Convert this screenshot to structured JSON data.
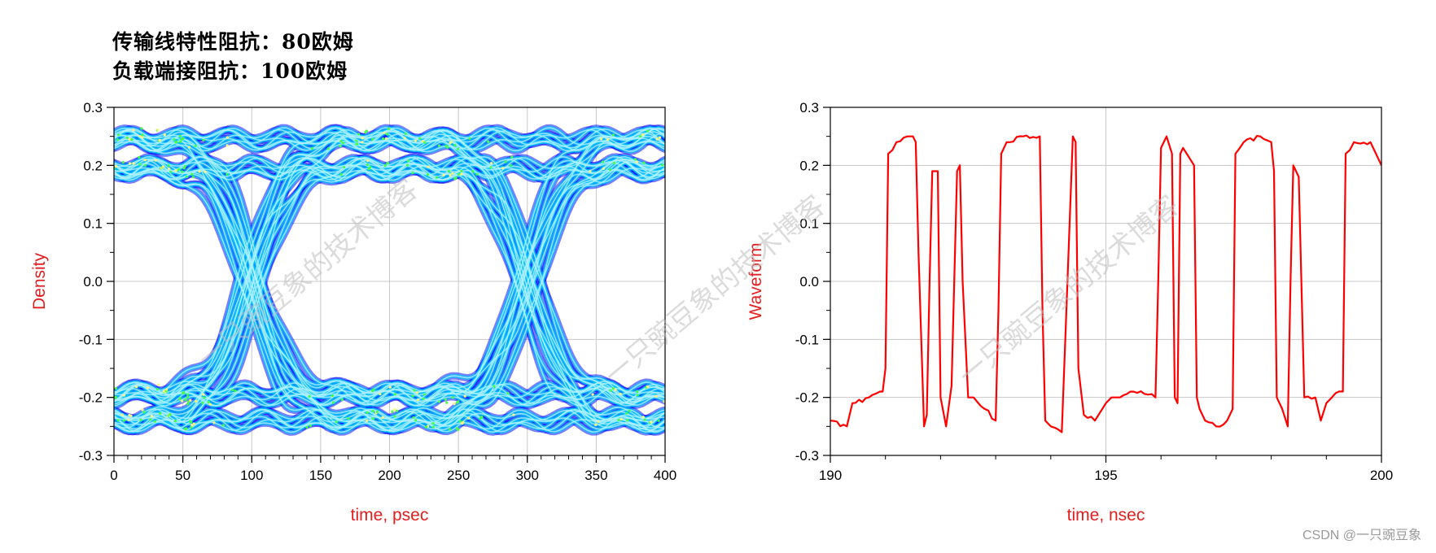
{
  "header": {
    "line1": "传输线特性阻抗：80欧姆",
    "line2": "负载端接阻抗：100欧姆"
  },
  "watermarks": [
    "一只豌豆象的技术博客",
    "一只豌豆象的技术博客",
    "一只豌豆象的技术博客"
  ],
  "credit": "CSDN @一只豌豆象",
  "colors": {
    "axis_label": "#e31e1e",
    "waveform": "#ff0000",
    "eye_low": "#1010ff",
    "eye_mid": "#00c8ff",
    "eye_high": "#44ff44"
  },
  "chart_data": [
    {
      "type": "heatmap",
      "title": "",
      "xlabel": "time, psec",
      "ylabel": "Density",
      "xlim": [
        0,
        400
      ],
      "ylim": [
        -0.3,
        0.3
      ],
      "x_ticks": [
        0,
        50,
        100,
        150,
        200,
        250,
        300,
        350,
        400
      ],
      "y_ticks": [
        -0.3,
        -0.2,
        -0.1,
        0.0,
        0.1,
        0.2,
        0.3
      ],
      "x_tick_labels": [
        "0",
        "50",
        "100",
        "150",
        "200",
        "250",
        "300",
        "350",
        "400"
      ],
      "y_tick_labels": [
        "-0.3",
        "-0.2",
        "-0.1",
        "0.0",
        "0.1",
        "0.2",
        "0.3"
      ],
      "grid": true,
      "eye_crossings_psec": [
        100,
        300
      ],
      "upper_levels": [
        0.245,
        0.195
      ],
      "lower_levels": [
        -0.195,
        -0.24
      ]
    },
    {
      "type": "line",
      "title": "",
      "xlabel": "time, nsec",
      "ylabel": "Waveform",
      "xlim": [
        190,
        200
      ],
      "ylim": [
        -0.3,
        0.3
      ],
      "x_ticks": [
        190,
        195,
        200
      ],
      "y_ticks": [
        -0.3,
        -0.2,
        -0.1,
        0.0,
        0.1,
        0.2,
        0.3
      ],
      "x_tick_labels": [
        "190",
        "195",
        "200"
      ],
      "y_tick_labels": [
        "-0.3",
        "-0.2",
        "-0.1",
        "0.0",
        "0.1",
        "0.2",
        "0.3"
      ],
      "grid": true,
      "x": [
        190.0,
        190.3,
        190.4,
        190.7,
        190.9,
        190.95,
        191.0,
        191.05,
        191.2,
        191.4,
        191.5,
        191.55,
        191.6,
        191.7,
        191.75,
        191.8,
        191.85,
        191.95,
        192.0,
        192.1,
        192.2,
        192.3,
        192.35,
        192.4,
        192.5,
        192.6,
        192.8,
        193.0,
        193.05,
        193.1,
        193.2,
        193.5,
        193.8,
        193.85,
        193.9,
        194.0,
        194.2,
        194.4,
        194.45,
        194.5,
        194.6,
        194.8,
        195.0,
        195.1,
        195.2,
        195.5,
        195.9,
        195.95,
        196.0,
        196.1,
        196.2,
        196.25,
        196.3,
        196.35,
        196.4,
        196.6,
        196.65,
        196.7,
        196.8,
        197.0,
        197.2,
        197.3,
        197.35,
        197.5,
        197.8,
        198.0,
        198.05,
        198.1,
        198.2,
        198.3,
        198.35,
        198.4,
        198.5,
        198.6,
        198.8,
        198.9,
        199.0,
        199.1,
        199.3,
        199.35,
        199.5,
        199.8,
        200.0
      ],
      "y": [
        -0.24,
        -0.25,
        -0.21,
        -0.2,
        -0.19,
        -0.19,
        -0.15,
        0.22,
        0.24,
        0.25,
        0.25,
        0.24,
        0.05,
        -0.25,
        -0.23,
        0.0,
        0.19,
        0.19,
        -0.2,
        -0.25,
        -0.18,
        0.19,
        0.2,
        0.0,
        -0.2,
        -0.2,
        -0.22,
        -0.24,
        -0.05,
        0.22,
        0.24,
        0.25,
        0.25,
        -0.05,
        -0.24,
        -0.25,
        -0.26,
        0.25,
        0.24,
        -0.15,
        -0.23,
        -0.24,
        -0.21,
        -0.2,
        -0.2,
        -0.19,
        -0.2,
        0.0,
        0.23,
        0.25,
        0.22,
        -0.2,
        -0.21,
        0.22,
        0.23,
        0.2,
        -0.2,
        -0.22,
        -0.24,
        -0.25,
        -0.24,
        -0.22,
        0.22,
        0.24,
        0.25,
        0.24,
        0.19,
        -0.2,
        -0.22,
        -0.25,
        0.0,
        0.2,
        0.18,
        -0.2,
        -0.2,
        -0.24,
        -0.21,
        -0.2,
        -0.19,
        0.22,
        0.24,
        0.24,
        0.2
      ]
    }
  ]
}
